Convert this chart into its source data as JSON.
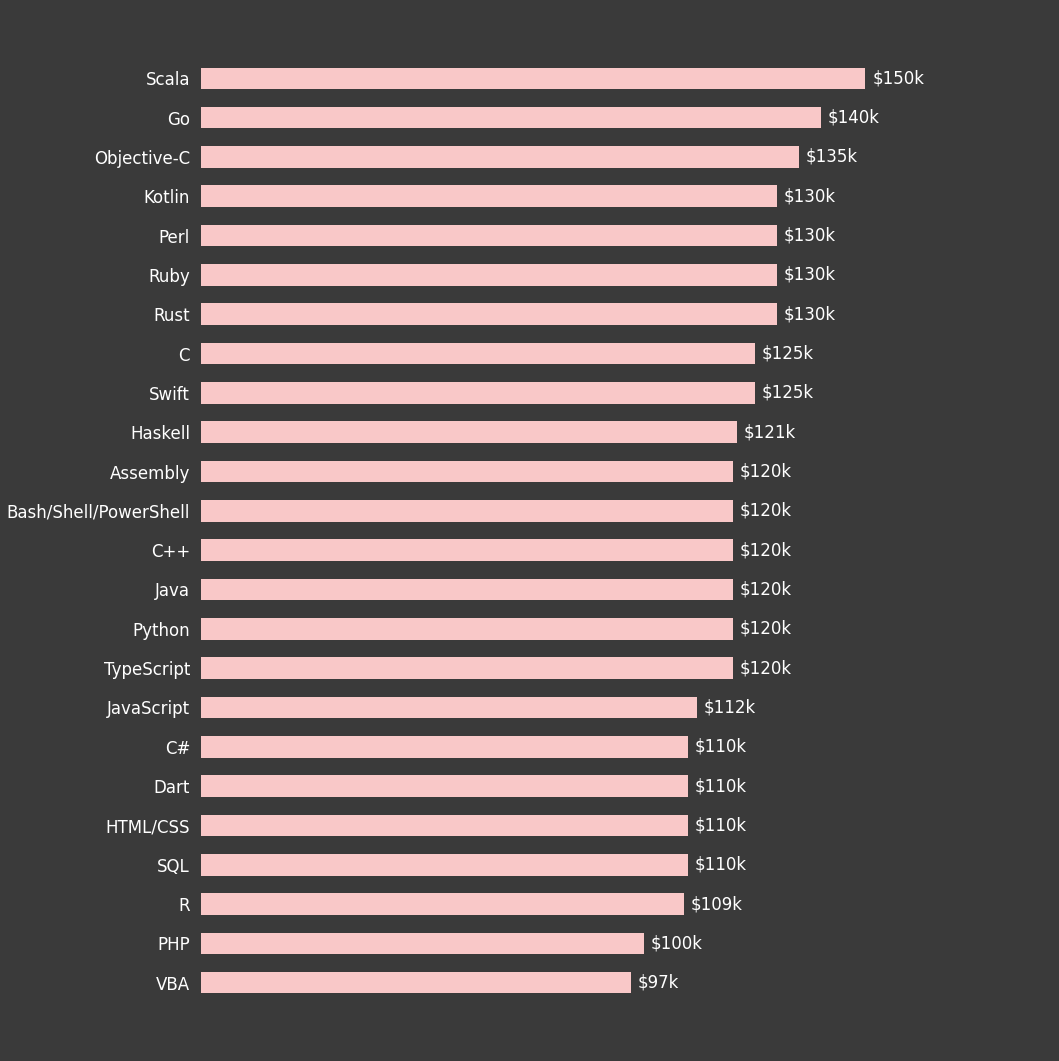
{
  "categories": [
    "Scala",
    "Go",
    "Objective-C",
    "Kotlin",
    "Perl",
    "Ruby",
    "Rust",
    "C",
    "Swift",
    "Haskell",
    "Assembly",
    "Bash/Shell/PowerShell",
    "C++",
    "Java",
    "Python",
    "TypeScript",
    "JavaScript",
    "C#",
    "Dart",
    "HTML/CSS",
    "SQL",
    "R",
    "PHP",
    "VBA"
  ],
  "values": [
    150,
    140,
    135,
    130,
    130,
    130,
    130,
    125,
    125,
    121,
    120,
    120,
    120,
    120,
    120,
    120,
    112,
    110,
    110,
    110,
    110,
    109,
    100,
    97
  ],
  "labels": [
    "$150k",
    "$140k",
    "$135k",
    "$130k",
    "$130k",
    "$130k",
    "$130k",
    "$125k",
    "$125k",
    "$121k",
    "$120k",
    "$120k",
    "$120k",
    "$120k",
    "$120k",
    "$120k",
    "$112k",
    "$110k",
    "$110k",
    "$110k",
    "$110k",
    "$109k",
    "$100k",
    "$97k"
  ],
  "bar_color": "#f9c8c8",
  "background_color": "#3a3a3a",
  "text_color": "#ffffff",
  "bar_height": 0.55,
  "xlim_max": 165,
  "label_fontsize": 12,
  "value_fontsize": 12
}
